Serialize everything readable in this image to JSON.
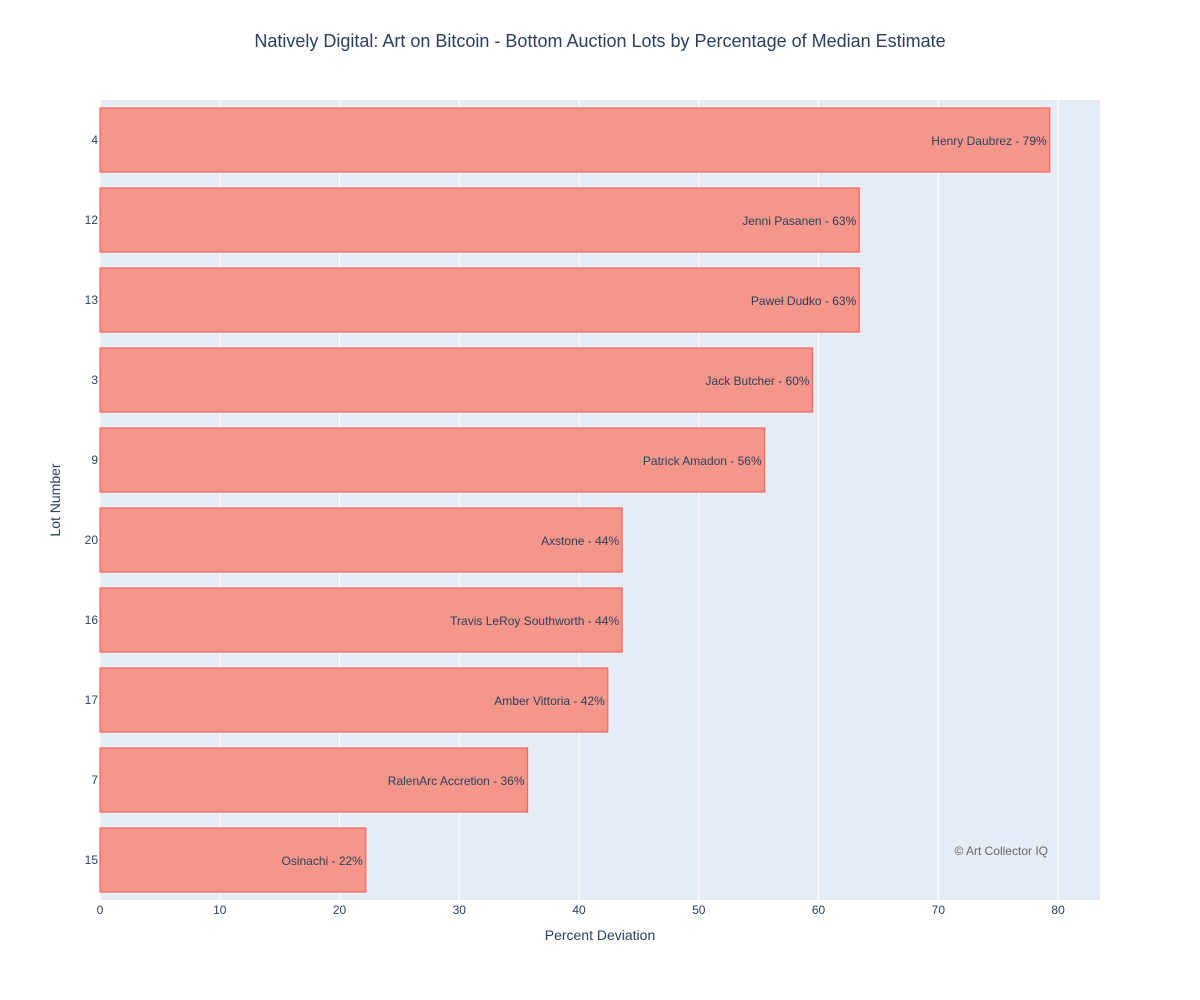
{
  "chart_data": {
    "type": "bar",
    "orientation": "horizontal",
    "title": "Natively Digital: Art on Bitcoin - Bottom Auction Lots by Percentage of Median Estimate",
    "xlabel": "Percent Deviation",
    "ylabel": "Lot Number",
    "xlim": [
      0,
      83.5
    ],
    "xticks": [
      "0",
      "10",
      "20",
      "30",
      "40",
      "50",
      "60",
      "70",
      "80"
    ],
    "grid": true,
    "bar_color": "#f4978a",
    "bar_edge_color": "#f0695e",
    "plot_background": "#e5ecf6",
    "categories": [
      "4",
      "12",
      "13",
      "3",
      "9",
      "20",
      "16",
      "17",
      "7",
      "15"
    ],
    "values": [
      79.3,
      63.4,
      63.4,
      59.5,
      55.5,
      43.6,
      43.6,
      42.4,
      35.7,
      22.2
    ],
    "bar_labels": [
      "Henry Daubrez - 79%",
      "Jenni Pasanen - 63%",
      "Paweł Dudko - 63%",
      "Jack Butcher - 60%",
      "Patrick Amadon - 56%",
      "Axstone - 44%",
      "Travis LeRoy Southworth - 44%",
      "Amber Vittoria - 42%",
      "RalenArc Accretion - 36%",
      "Osinachi - 22%"
    ],
    "annotation": "© Art Collector IQ"
  }
}
